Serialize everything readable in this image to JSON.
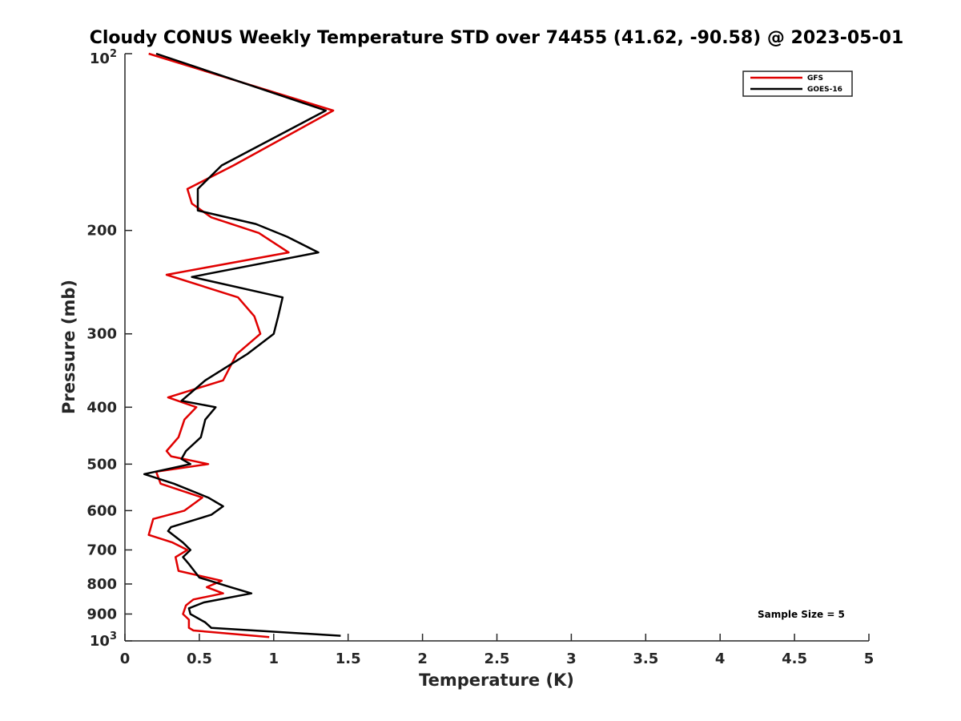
{
  "chart_data": {
    "type": "line",
    "title": "Cloudy CONUS Weekly Temperature STD over 74455 (41.62, -90.58) @ 2023-05-01",
    "xlabel": "Temperature (K)",
    "ylabel": "Pressure (mb)",
    "xlim": [
      0,
      5
    ],
    "ylim": [
      100,
      1000
    ],
    "yscale": "log",
    "y_reversed": true,
    "xticks": [
      0,
      0.5,
      1,
      1.5,
      2,
      2.5,
      3,
      3.5,
      4,
      4.5,
      5
    ],
    "xtick_labels": [
      "0",
      "0.5",
      "1",
      "1.5",
      "2",
      "2.5",
      "3",
      "3.5",
      "4",
      "4.5",
      "5"
    ],
    "yticks": [
      200,
      300,
      400,
      500,
      600,
      700,
      800,
      900
    ],
    "ytick_labels": [
      "200",
      "300",
      "400",
      "500",
      "600",
      "700",
      "800",
      "900"
    ],
    "ytick_top": {
      "base": "10",
      "exp": "2"
    },
    "ytick_bottom": {
      "base": "10",
      "exp": "3"
    },
    "legend_position": "top-right",
    "annotation": "Sample Size = 5",
    "series": [
      {
        "name": "GFS",
        "color": "#e00000",
        "points": [
          [
            0.16,
            100
          ],
          [
            1.4,
            125
          ],
          [
            0.73,
            155
          ],
          [
            0.42,
            170
          ],
          [
            0.45,
            180
          ],
          [
            0.58,
            190
          ],
          [
            0.9,
            202
          ],
          [
            1.1,
            218
          ],
          [
            0.28,
            238
          ],
          [
            0.76,
            260
          ],
          [
            0.87,
            280
          ],
          [
            0.91,
            300
          ],
          [
            0.75,
            325
          ],
          [
            0.66,
            360
          ],
          [
            0.29,
            385
          ],
          [
            0.48,
            400
          ],
          [
            0.4,
            420
          ],
          [
            0.36,
            450
          ],
          [
            0.28,
            475
          ],
          [
            0.31,
            485
          ],
          [
            0.56,
            500
          ],
          [
            0.21,
            515
          ],
          [
            0.24,
            540
          ],
          [
            0.52,
            570
          ],
          [
            0.4,
            600
          ],
          [
            0.19,
            620
          ],
          [
            0.16,
            660
          ],
          [
            0.32,
            680
          ],
          [
            0.42,
            700
          ],
          [
            0.34,
            720
          ],
          [
            0.36,
            760
          ],
          [
            0.65,
            790
          ],
          [
            0.55,
            810
          ],
          [
            0.66,
            830
          ],
          [
            0.46,
            850
          ],
          [
            0.41,
            870
          ],
          [
            0.39,
            900
          ],
          [
            0.43,
            920
          ],
          [
            0.43,
            950
          ],
          [
            0.46,
            960
          ],
          [
            0.97,
            985
          ]
        ]
      },
      {
        "name": "GOES-16",
        "color": "#000000",
        "points": [
          [
            0.21,
            100
          ],
          [
            1.35,
            125
          ],
          [
            0.65,
            155
          ],
          [
            0.49,
            170
          ],
          [
            0.49,
            185
          ],
          [
            0.88,
            195
          ],
          [
            1.09,
            205
          ],
          [
            1.3,
            218
          ],
          [
            0.45,
            240
          ],
          [
            1.06,
            260
          ],
          [
            1.03,
            280
          ],
          [
            1.0,
            300
          ],
          [
            0.82,
            325
          ],
          [
            0.54,
            360
          ],
          [
            0.38,
            390
          ],
          [
            0.61,
            400
          ],
          [
            0.54,
            420
          ],
          [
            0.51,
            450
          ],
          [
            0.41,
            475
          ],
          [
            0.38,
            490
          ],
          [
            0.44,
            500
          ],
          [
            0.13,
            520
          ],
          [
            0.33,
            540
          ],
          [
            0.56,
            570
          ],
          [
            0.66,
            590
          ],
          [
            0.58,
            610
          ],
          [
            0.31,
            640
          ],
          [
            0.29,
            650
          ],
          [
            0.39,
            680
          ],
          [
            0.44,
            700
          ],
          [
            0.39,
            720
          ],
          [
            0.43,
            740
          ],
          [
            0.5,
            780
          ],
          [
            0.71,
            810
          ],
          [
            0.85,
            830
          ],
          [
            0.53,
            860
          ],
          [
            0.43,
            880
          ],
          [
            0.44,
            900
          ],
          [
            0.54,
            930
          ],
          [
            0.58,
            950
          ],
          [
            1.45,
            980
          ]
        ]
      }
    ]
  }
}
